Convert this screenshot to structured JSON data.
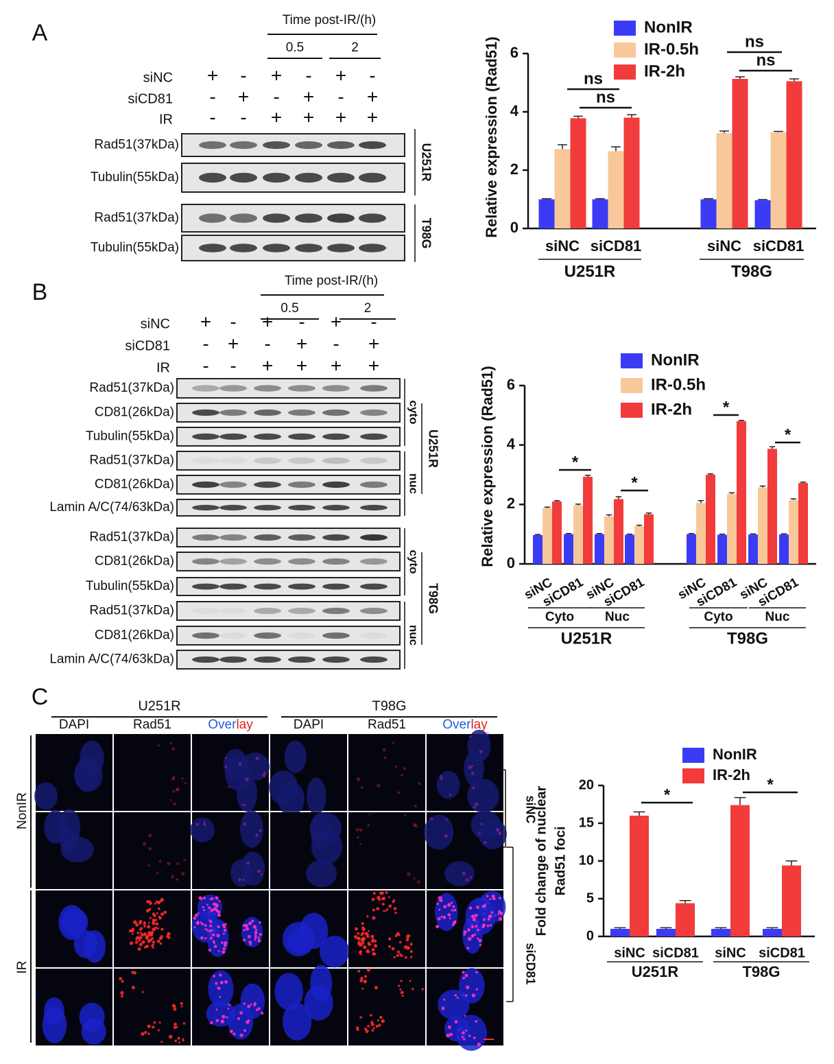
{
  "panel_labels": [
    "A",
    "B",
    "C"
  ],
  "blot_a": {
    "time_label": "Time post-IR/(h)",
    "time_points": [
      "0.5",
      "2"
    ],
    "conditions": [
      {
        "name": "siNC",
        "signs": [
          "+",
          "-",
          "+",
          "-",
          "+",
          "-"
        ]
      },
      {
        "name": "siCD81",
        "signs": [
          "-",
          "+",
          "-",
          "+",
          "-",
          "+"
        ]
      },
      {
        "name": "IR",
        "signs": [
          "-",
          "-",
          "+",
          "+",
          "+",
          "+"
        ]
      }
    ],
    "bands": [
      "Rad51(37kDa)",
      "Tubulin(55kDa)",
      "Rad51(37kDa)",
      "Tubulin(55kDa)"
    ],
    "cell_lines": [
      "U251R",
      "T98G"
    ]
  },
  "blot_b": {
    "time_label": "Time post-IR/(h)",
    "time_points": [
      "0.5",
      "2"
    ],
    "conditions": [
      {
        "name": "siNC",
        "signs": [
          "+",
          "-",
          "+",
          "-",
          "+",
          "-"
        ]
      },
      {
        "name": "siCD81",
        "signs": [
          "-",
          "+",
          "-",
          "+",
          "-",
          "+"
        ]
      },
      {
        "name": "IR",
        "signs": [
          "-",
          "-",
          "+",
          "+",
          "+",
          "+"
        ]
      }
    ],
    "bands": [
      "Rad51(37kDa)",
      "CD81(26kDa)",
      "Tubulin(55kDa)",
      "Rad51(37kDa)",
      "CD81(26kDa)",
      "Lamin A/C(74/63kDa)",
      "Rad51(37kDa)",
      "CD81(26kDa)",
      "Tubulin(55kDa)",
      "Rad51(37kDa)",
      "CD81(26kDa)",
      "Lamin A/C(74/63kDa)"
    ],
    "fractions": [
      "cyto",
      "nuc",
      "cyto",
      "nuc"
    ],
    "cell_lines": [
      "U251R",
      "T98G"
    ]
  },
  "images": {
    "cell_lines": [
      "U251R",
      "T98G"
    ],
    "channels": [
      "DAPI",
      "Rad51",
      [
        "Over",
        "lay"
      ],
      "DAPI",
      "Rad51",
      [
        "Over",
        "lay"
      ]
    ],
    "rows": [
      "NonIR",
      "IR"
    ],
    "treatments": [
      "siNC",
      "siCD81"
    ]
  },
  "chart_data": [
    {
      "type": "bar",
      "ylabel": "Relative expression (Rad51)",
      "categories": [
        "siNC",
        "siCD81",
        "siNC",
        "siCD81"
      ],
      "groups": [
        "U251R",
        "T98G"
      ],
      "series": [
        {
          "name": "NonIR",
          "color": "#3b3bf5",
          "values": [
            1,
            1,
            1,
            0.97
          ],
          "errors": [
            0.02,
            0.02,
            0.02,
            0.02
          ]
        },
        {
          "name": "IR-0.5h",
          "color": "#f8c89a",
          "values": [
            2.72,
            2.65,
            3.27,
            3.3
          ],
          "errors": [
            0.15,
            0.15,
            0.07,
            0.03
          ]
        },
        {
          "name": "IR-2h",
          "color": "#f23b3b",
          "values": [
            3.78,
            3.8,
            5.13,
            5.05
          ],
          "errors": [
            0.07,
            0.1,
            0.07,
            0.08
          ]
        }
      ],
      "annotations": [
        "ns",
        "ns",
        "ns",
        "ns"
      ],
      "ylim": [
        0,
        6
      ],
      "yticks": [
        0,
        2,
        4,
        6
      ]
    },
    {
      "type": "bar",
      "ylabel": "Relative expression (Rad51)",
      "categories": [
        "siNC",
        "siCD81",
        "siNC",
        "siCD81",
        "siNC",
        "siCD81",
        "siNC",
        "siCD81"
      ],
      "subgroups": [
        "Cyto",
        "Nuc",
        "Cyto",
        "Nuc"
      ],
      "groups": [
        "U251R",
        "T98G"
      ],
      "series": [
        {
          "name": "NonIR",
          "color": "#3b3bf5",
          "values": [
            0.97,
            1,
            1,
            0.98,
            1,
            0.98,
            0.99,
            0.99
          ],
          "errors": [
            0.02,
            0.02,
            0.02,
            0.02,
            0.02,
            0.02,
            0.02,
            0.02
          ]
        },
        {
          "name": "IR-0.5h",
          "color": "#f8c89a",
          "values": [
            1.88,
            1.97,
            1.6,
            1.27,
            2.05,
            2.35,
            2.57,
            2.15
          ],
          "errors": [
            0.03,
            0.04,
            0.05,
            0.03,
            0.08,
            0.04,
            0.05,
            0.04
          ]
        },
        {
          "name": "IR-2h",
          "color": "#f23b3b",
          "values": [
            2.1,
            2.93,
            2.18,
            1.67,
            3,
            4.8,
            3.87,
            2.72
          ],
          "errors": [
            0.03,
            0.05,
            0.08,
            0.04,
            0.03,
            0.03,
            0.07,
            0.03
          ]
        }
      ],
      "annotations": [
        "*",
        "*",
        "*",
        "*"
      ],
      "ylim": [
        0,
        6
      ],
      "yticks": [
        0,
        2,
        4,
        6
      ]
    },
    {
      "type": "bar",
      "ylabel": [
        "Fold change of nuclear",
        "Rad51 foci"
      ],
      "categories": [
        "siNC",
        "siCD81",
        "siNC",
        "siCD81"
      ],
      "groups": [
        "U251R",
        "T98G"
      ],
      "series": [
        {
          "name": "NonIR",
          "color": "#3b3bf5",
          "values": [
            1,
            1,
            1,
            1
          ],
          "errors": [
            0.15,
            0.15,
            0.15,
            0.15
          ]
        },
        {
          "name": "IR-2h",
          "color": "#f23b3b",
          "values": [
            16,
            4.4,
            17.4,
            9.4
          ],
          "errors": [
            0.5,
            0.35,
            1,
            0.6
          ]
        }
      ],
      "annotations": [
        "*",
        "*"
      ],
      "ylim": [
        0,
        20
      ],
      "yticks": [
        0,
        5,
        10,
        15,
        20
      ]
    }
  ]
}
